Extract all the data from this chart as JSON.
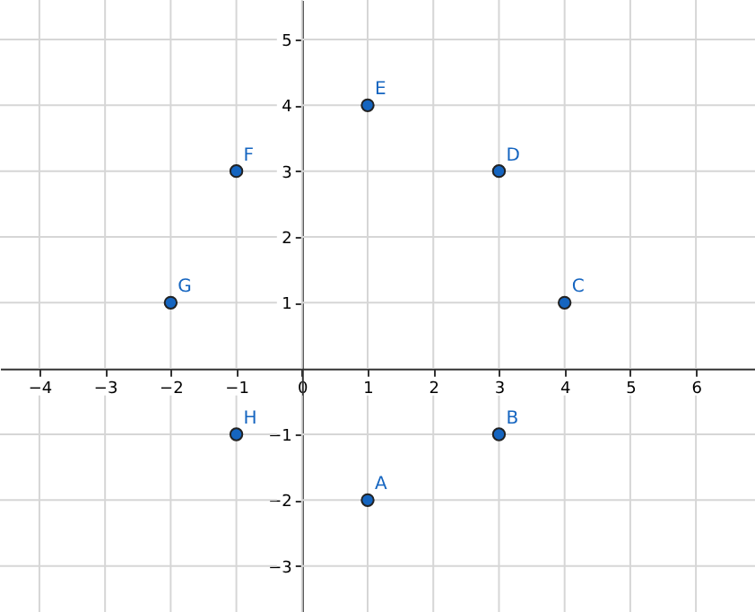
{
  "chart_data": {
    "type": "scatter",
    "series": [
      {
        "color": "#1565c0",
        "x": [
          1,
          3,
          4,
          3,
          1,
          -1,
          -2,
          -1
        ],
        "values": [
          -2,
          -1,
          1,
          3,
          4,
          3,
          1,
          -1
        ]
      }
    ],
    "annotations": [
      {
        "text": "A",
        "x": 1,
        "y": -2
      },
      {
        "text": "B",
        "x": 3,
        "y": -1
      },
      {
        "text": "C",
        "x": 4,
        "y": 1
      },
      {
        "text": "D",
        "x": 3,
        "y": 3
      },
      {
        "text": "E",
        "x": 1,
        "y": 4
      },
      {
        "text": "F",
        "x": -1,
        "y": 3
      },
      {
        "text": "G",
        "x": -2,
        "y": 1
      },
      {
        "text": "H",
        "x": -1,
        "y": -1
      }
    ],
    "xlim": [
      -4.6,
      6.9
    ],
    "ylim": [
      -3.7,
      5.6
    ],
    "xticks": [
      -4,
      -3,
      -2,
      -1,
      0,
      1,
      2,
      3,
      4,
      5,
      6
    ],
    "yticks": [
      -3,
      -2,
      -1,
      1,
      2,
      3,
      4,
      5
    ],
    "grid": true,
    "marker": "circle"
  }
}
